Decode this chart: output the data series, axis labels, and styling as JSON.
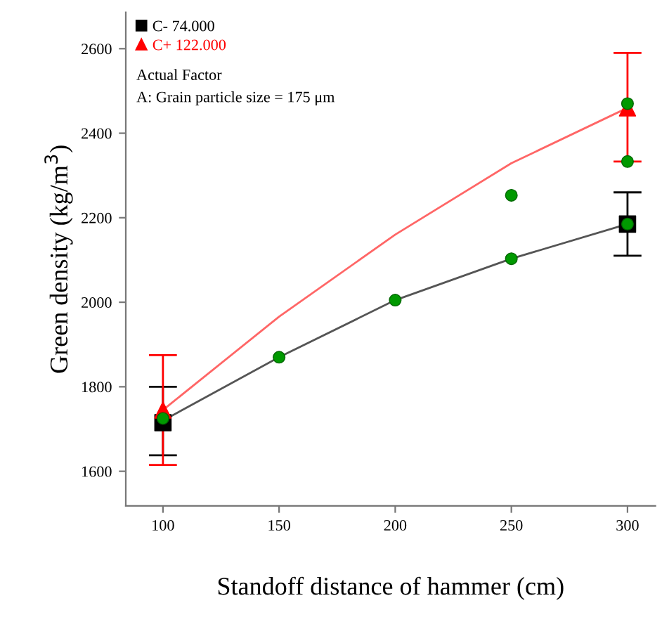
{
  "chart_data": {
    "type": "scatter",
    "xlabel": "Standoff distance of hammer (cm)",
    "ylabel": "Green density (kg/m$^{3}$)",
    "xlim": [
      84,
      312
    ],
    "ylim": [
      1518,
      2686
    ],
    "xticks": [
      100,
      150,
      200,
      250,
      300
    ],
    "yticks": [
      1600,
      1800,
      2000,
      2200,
      2400,
      2600
    ],
    "grid": false,
    "legend": "top left",
    "annotations": [
      "Actual Factor",
      "A: Grain particle size = 175 μm"
    ],
    "series": [
      {
        "name": "C- 74.000",
        "marker": "square",
        "color": "#000000",
        "x": [
          100,
          300
        ],
        "values": [
          1715,
          2185
        ],
        "errors": [
          [
            1638,
            1800
          ],
          [
            2110,
            2260
          ]
        ]
      },
      {
        "name": "C+ 122.000",
        "marker": "triangle",
        "color": "#ff0000",
        "x": [
          100,
          300
        ],
        "values": [
          1745,
          2460
        ],
        "errors": [
          [
            1615,
            1875
          ],
          [
            2333,
            2590
          ]
        ]
      },
      {
        "type": "line",
        "marker": "none",
        "color": "#555555",
        "x": [
          100,
          150,
          200,
          250,
          300
        ],
        "values": [
          1720,
          1870,
          2005,
          2103,
          2185
        ]
      },
      {
        "type": "line",
        "marker": "none",
        "color": "#ff6666",
        "x": [
          100,
          150,
          200,
          250,
          300
        ],
        "values": [
          1745,
          1966,
          2160,
          2329,
          2460
        ]
      },
      {
        "marker": "circle",
        "color": "#009900",
        "x": [
          100,
          150,
          200,
          250,
          250,
          300,
          300,
          300
        ],
        "values": [
          1725,
          1870,
          2005,
          2253,
          2103,
          2470,
          2333,
          2185
        ]
      }
    ]
  }
}
